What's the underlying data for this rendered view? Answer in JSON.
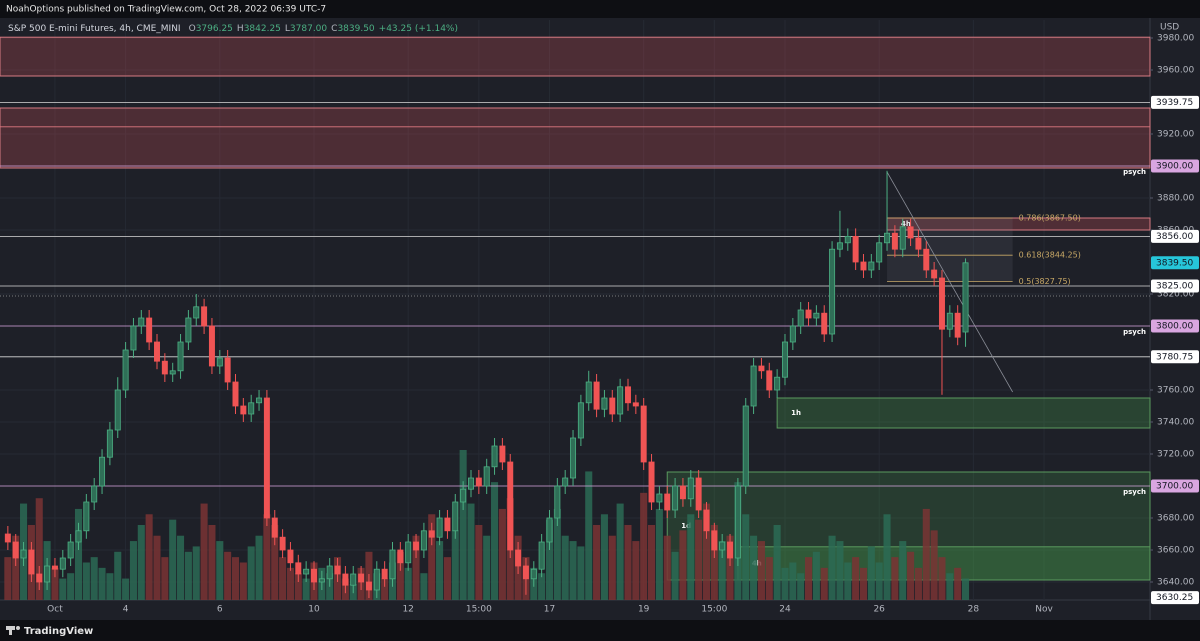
{
  "header": {
    "text": "NoahOptions published on TradingView.com, Oct 28, 2022 06:39 UTC-7",
    "currency": "USD"
  },
  "footer": {
    "brand": "TradingView"
  },
  "chart_data": {
    "type": "candlestick",
    "title": "S&P 500 E-mini Futures, 4h, CME_MINI",
    "ohlc_legend": [
      {
        "key": "O",
        "value": "3796.25"
      },
      {
        "key": "H",
        "value": "3842.25"
      },
      {
        "key": "L",
        "value": "3787.00"
      },
      {
        "key": "C",
        "value": "3839.50"
      }
    ],
    "change": "+43.25 (+1.14%)",
    "open": [
      3670,
      3665,
      3655,
      3660,
      3645,
      3640,
      3650,
      3648,
      3655,
      3665,
      3672,
      3690,
      3700,
      3718,
      3735,
      3760,
      3785,
      3800,
      3805,
      3790,
      3778,
      3770,
      3772,
      3790,
      3805,
      3812,
      3800,
      3775,
      3780,
      3765,
      3750,
      3745,
      3752,
      3755,
      3680,
      3668,
      3660,
      3652,
      3645,
      3648,
      3640,
      3642,
      3650,
      3645,
      3638,
      3645,
      3640,
      3635,
      3648,
      3642,
      3660,
      3652,
      3665,
      3660,
      3672,
      3668,
      3680,
      3672,
      3690,
      3698,
      3705,
      3700,
      3712,
      3725,
      3715,
      3660,
      3650,
      3642,
      3648,
      3665,
      3680,
      3700,
      3705,
      3730,
      3752,
      3765,
      3748,
      3755,
      3745,
      3762,
      3752,
      3750,
      3715,
      3690,
      3695,
      3685,
      3700,
      3692,
      3705,
      3685,
      3672,
      3660,
      3665,
      3655,
      3700,
      3750,
      3775,
      3772,
      3760,
      3768,
      3790,
      3800,
      3810,
      3805,
      3808,
      3795,
      3848,
      3852,
      3856,
      3840,
      3835,
      3840,
      3852,
      3858,
      3848,
      3862,
      3855,
      3848,
      3835,
      3830,
      3798,
      3808,
      3796.25
    ],
    "high": [
      3675,
      3670,
      3665,
      3665,
      3650,
      3655,
      3655,
      3660,
      3670,
      3677,
      3695,
      3705,
      3723,
      3740,
      3768,
      3790,
      3805,
      3810,
      3810,
      3795,
      3783,
      3777,
      3795,
      3810,
      3820,
      3817,
      3805,
      3785,
      3785,
      3770,
      3755,
      3757,
      3760,
      3760,
      3685,
      3673,
      3665,
      3657,
      3653,
      3653,
      3647,
      3655,
      3655,
      3650,
      3650,
      3650,
      3645,
      3653,
      3653,
      3665,
      3665,
      3670,
      3670,
      3677,
      3677,
      3685,
      3685,
      3695,
      3703,
      3710,
      3710,
      3717,
      3730,
      3730,
      3720,
      3665,
      3655,
      3653,
      3670,
      3685,
      3705,
      3710,
      3735,
      3757,
      3772,
      3770,
      3760,
      3760,
      3767,
      3767,
      3757,
      3755,
      3720,
      3700,
      3700,
      3705,
      3705,
      3710,
      3710,
      3690,
      3677,
      3670,
      3670,
      3705,
      3755,
      3780,
      3780,
      3777,
      3773,
      3795,
      3805,
      3815,
      3815,
      3813,
      3813,
      3853,
      3872,
      3861,
      3861,
      3845,
      3845,
      3857,
      3897,
      3863,
      3867,
      3867,
      3860,
      3853,
      3840,
      3835,
      3813,
      3813,
      3842.25
    ],
    "low": [
      3660,
      3650,
      3650,
      3640,
      3635,
      3635,
      3643,
      3643,
      3650,
      3660,
      3667,
      3685,
      3695,
      3713,
      3730,
      3755,
      3780,
      3795,
      3785,
      3773,
      3765,
      3765,
      3767,
      3785,
      3800,
      3795,
      3770,
      3770,
      3760,
      3745,
      3740,
      3740,
      3747,
      3675,
      3663,
      3655,
      3647,
      3640,
      3640,
      3635,
      3635,
      3637,
      3640,
      3633,
      3633,
      3635,
      3630,
      3630,
      3637,
      3637,
      3647,
      3647,
      3655,
      3655,
      3663,
      3663,
      3667,
      3667,
      3685,
      3693,
      3695,
      3695,
      3707,
      3710,
      3655,
      3645,
      3632,
      3637,
      3643,
      3660,
      3675,
      3695,
      3700,
      3725,
      3747,
      3743,
      3743,
      3740,
      3740,
      3747,
      3745,
      3710,
      3685,
      3685,
      3680,
      3680,
      3687,
      3687,
      3680,
      3667,
      3655,
      3655,
      3650,
      3650,
      3695,
      3745,
      3767,
      3755,
      3755,
      3763,
      3785,
      3795,
      3800,
      3800,
      3790,
      3790,
      3843,
      3847,
      3835,
      3830,
      3830,
      3835,
      3847,
      3843,
      3843,
      3850,
      3843,
      3830,
      3825,
      3757,
      3793,
      3788,
      3787
    ],
    "close": [
      3665,
      3655,
      3660,
      3645,
      3640,
      3650,
      3648,
      3655,
      3665,
      3672,
      3690,
      3700,
      3718,
      3735,
      3760,
      3785,
      3800,
      3805,
      3790,
      3778,
      3770,
      3772,
      3790,
      3805,
      3812,
      3800,
      3775,
      3780,
      3765,
      3750,
      3745,
      3752,
      3755,
      3680,
      3668,
      3660,
      3652,
      3645,
      3648,
      3640,
      3642,
      3650,
      3645,
      3638,
      3645,
      3640,
      3635,
      3648,
      3642,
      3660,
      3652,
      3665,
      3660,
      3672,
      3668,
      3680,
      3672,
      3690,
      3698,
      3705,
      3700,
      3712,
      3725,
      3715,
      3660,
      3650,
      3642,
      3648,
      3665,
      3680,
      3700,
      3705,
      3730,
      3752,
      3765,
      3748,
      3755,
      3745,
      3762,
      3752,
      3750,
      3715,
      3690,
      3695,
      3685,
      3700,
      3692,
      3705,
      3685,
      3672,
      3660,
      3665,
      3655,
      3700,
      3750,
      3775,
      3772,
      3760,
      3768,
      3790,
      3800,
      3810,
      3805,
      3808,
      3795,
      3848,
      3852,
      3856,
      3840,
      3835,
      3840,
      3852,
      3858,
      3848,
      3862,
      3855,
      3848,
      3835,
      3830,
      3798,
      3808,
      3793,
      3839.5
    ],
    "volume": [
      40,
      60,
      90,
      70,
      95,
      55,
      30,
      20,
      25,
      85,
      35,
      40,
      30,
      25,
      45,
      20,
      55,
      70,
      80,
      60,
      40,
      75,
      60,
      45,
      50,
      90,
      70,
      55,
      45,
      40,
      35,
      50,
      60,
      80,
      70,
      40,
      30,
      25,
      20,
      35,
      30,
      25,
      40,
      20,
      15,
      30,
      45,
      25,
      20,
      35,
      45,
      30,
      60,
      25,
      80,
      55,
      40,
      65,
      140,
      90,
      70,
      60,
      110,
      85,
      95,
      60,
      40,
      30,
      25,
      75,
      85,
      60,
      55,
      50,
      120,
      70,
      80,
      60,
      90,
      70,
      55,
      100,
      70,
      85,
      60,
      45,
      65,
      80,
      75,
      90,
      70,
      55,
      60,
      110,
      80,
      60,
      55,
      40,
      70,
      30,
      35,
      25,
      40,
      45,
      30,
      60,
      55,
      35,
      40,
      30,
      50,
      35,
      80,
      40,
      55,
      45,
      30,
      85,
      65,
      40,
      25,
      30,
      20
    ],
    "colors": {
      "up": "#4caf83",
      "up_fill": "#2f6f57",
      "down": "#f05454",
      "volume_up": "#2b6b55",
      "volume_down": "#7a3434"
    },
    "xlim": [
      -1,
      145.5
    ],
    "xticks": [
      {
        "value": 6,
        "label": "Oct"
      },
      {
        "value": 15,
        "label": "4"
      },
      {
        "value": 27,
        "label": "6"
      },
      {
        "value": 39,
        "label": "10"
      },
      {
        "value": 51,
        "label": "12"
      },
      {
        "value": 60,
        "label": "15:00"
      },
      {
        "value": 69,
        "label": "17"
      },
      {
        "value": 81,
        "label": "19"
      },
      {
        "value": 90,
        "label": "15:00"
      },
      {
        "value": 99,
        "label": "24"
      },
      {
        "value": 111,
        "label": "26"
      },
      {
        "value": 123,
        "label": "28"
      },
      {
        "value": 132,
        "label": "Nov"
      }
    ],
    "ylim": [
      3628.75,
      3991.25
    ],
    "yticks": [
      {
        "value": 3980,
        "label": "3980.00"
      },
      {
        "value": 3960,
        "label": "3960.00"
      },
      {
        "value": 3920,
        "label": "3920.00"
      },
      {
        "value": 3880,
        "label": "3880.00"
      },
      {
        "value": 3860,
        "label": "3860.00"
      },
      {
        "value": 3820,
        "label": "3820.00"
      },
      {
        "value": 3760,
        "label": "3760.00"
      },
      {
        "value": 3740,
        "label": "3740.00"
      },
      {
        "value": 3720,
        "label": "3720.00"
      },
      {
        "value": 3680,
        "label": "3680.00"
      },
      {
        "value": 3660,
        "label": "3660.00"
      },
      {
        "value": 3640,
        "label": "3640.00"
      }
    ],
    "grid": true,
    "zones": [
      {
        "top": 3980.5,
        "bottom": 3956.25,
        "fill": "rgba(200,80,90,0.28)",
        "stroke": "#d77a82"
      },
      {
        "top": 3936.25,
        "bottom": 3898.75,
        "fill": "rgba(200,80,90,0.28)",
        "stroke": "#d77a82"
      },
      {
        "top": 3867.5,
        "bottom": 3860,
        "from": 112,
        "fill": "rgba(200,80,90,0.3)",
        "stroke": "#d77a82",
        "label": "4h"
      },
      {
        "top": 3755,
        "bottom": 3736.25,
        "from": 98,
        "fill": "rgba(76,175,80,0.25)",
        "stroke": "#5a9a5e",
        "label": "1h"
      },
      {
        "top": 3708.75,
        "bottom": 3641.25,
        "from": 84,
        "fill": "rgba(76,175,80,0.2)",
        "stroke": "#5a9a5e",
        "label": "1d"
      },
      {
        "top": 3662,
        "bottom": 3641.25,
        "from": 93,
        "fill": "rgba(76,175,80,0.25)",
        "stroke": "#5a9a5e",
        "label": "4h"
      }
    ],
    "price_lines": [
      {
        "value": 3939.75,
        "label": "3939.75",
        "color": "#d8d8d8",
        "box": "#ffffff"
      },
      {
        "value": 3924.5,
        "color": "#e07a80"
      },
      {
        "value": 3900,
        "label": "3900.00",
        "color": "#d9a6e0",
        "box": "#d9a6e0",
        "note": "psych"
      },
      {
        "value": 3856,
        "label": "3856.00",
        "color": "#d8d8d8",
        "box": "#ffffff"
      },
      {
        "value": 3825,
        "label": "3825.00",
        "color": "#d8d8d8",
        "box": "#ffffff"
      },
      {
        "value": 3818.75,
        "color": "#9a9a9a",
        "style": "dotted"
      },
      {
        "value": 3800,
        "label": "3800.00",
        "color": "#d9a6e0",
        "box": "#d9a6e0",
        "note": "psych"
      },
      {
        "value": 3780.75,
        "label": "3780.75",
        "color": "#d8d8d8",
        "box": "#ffffff"
      },
      {
        "value": 3700,
        "label": "3700.00",
        "color": "#d9a6e0",
        "box": "#d9a6e0",
        "note": "psych"
      }
    ],
    "last_price": {
      "value": 3839.5,
      "label": "3839.50",
      "box": "#26c6da"
    },
    "low_marker": {
      "value": 3630.25,
      "label": "3630.25",
      "box": "#ffffff"
    },
    "fib": {
      "from": 112,
      "to": 128,
      "color": "#c8a866",
      "levels": [
        {
          "value": 3867.5,
          "label": "0.786(3867.50)"
        },
        {
          "value": 3844.25,
          "label": "0.618(3844.25)"
        },
        {
          "value": 3827.75,
          "label": "0.5(3827.75)"
        }
      ]
    },
    "trend_line": {
      "from": [
        112,
        3896.25
      ],
      "to": [
        128,
        3758.75
      ]
    }
  }
}
